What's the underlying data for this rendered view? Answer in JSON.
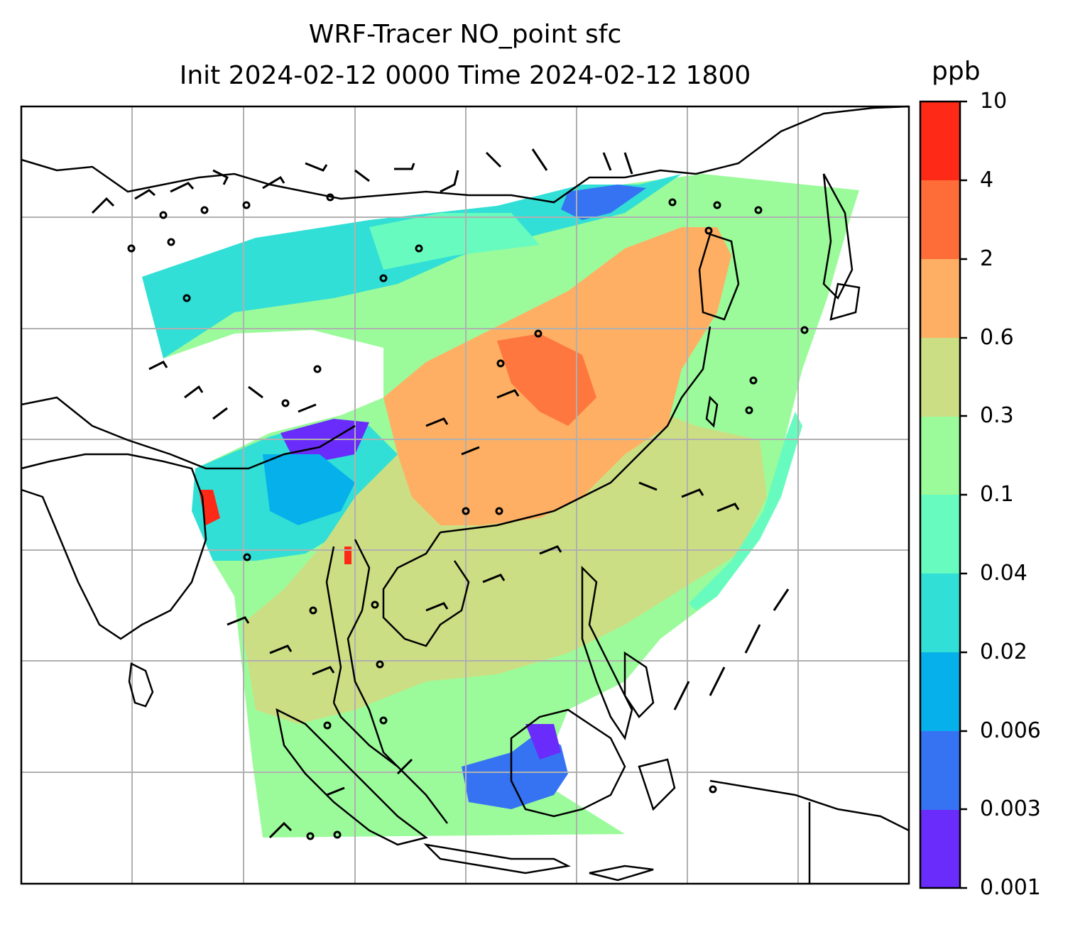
{
  "title_line1": "WRF-Tracer NO_point sfc",
  "title_line2": "Init 2024-02-12 0000 Time 2024-02-12 1800",
  "colorbar": {
    "unit": "ppb",
    "levels": [
      "0.001",
      "0.003",
      "0.006",
      "0.02",
      "0.04",
      "0.1",
      "0.3",
      "0.6",
      "2",
      "4",
      "10"
    ],
    "colors": [
      "#6a2cfa",
      "#3573f3",
      "#06b0eb",
      "#31dfd6",
      "#68fbbf",
      "#9bfb9b",
      "#ccde83",
      "#feaf63",
      "#fe6d38",
      "#fe2a17"
    ]
  },
  "map": {
    "region": "South and Southeast Asia",
    "grid": true,
    "background": "#ffffff",
    "coastline_color": "#000000",
    "overlay": "wind barbs",
    "field": "NO_point surface tracer concentration"
  }
}
